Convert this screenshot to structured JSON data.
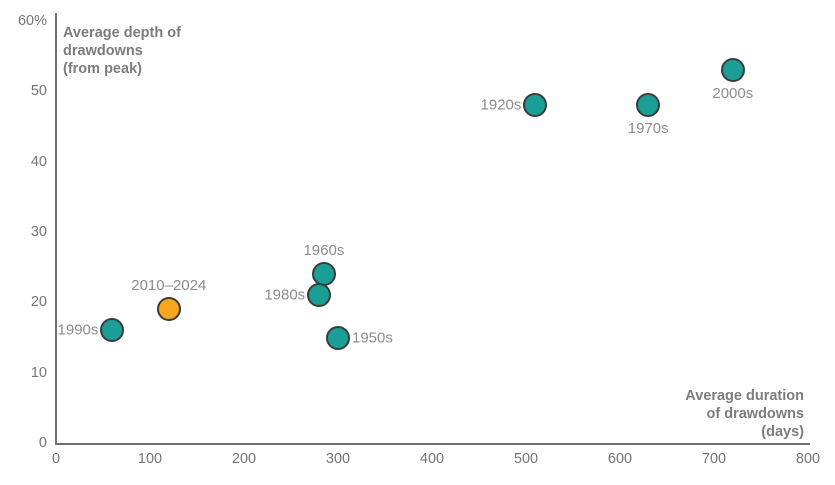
{
  "chart_data": {
    "type": "scatter",
    "title": "",
    "xlabel": "Average duration of drawdowns (days)",
    "ylabel": "Average depth of drawdowns (from peak)",
    "xlabel_lines": [
      "Average duration",
      "of drawdowns",
      "(days)"
    ],
    "ylabel_lines": [
      "Average depth of",
      "drawdowns",
      "(from peak)"
    ],
    "xlim": [
      0,
      800
    ],
    "ylim": [
      0,
      60
    ],
    "grid": false,
    "legend": false,
    "x_ticks": [
      {
        "value": 0,
        "label": "0"
      },
      {
        "value": 100,
        "label": "100"
      },
      {
        "value": 200,
        "label": "200"
      },
      {
        "value": 300,
        "label": "300"
      },
      {
        "value": 400,
        "label": "400"
      },
      {
        "value": 500,
        "label": "500"
      },
      {
        "value": 600,
        "label": "600"
      },
      {
        "value": 700,
        "label": "700"
      },
      {
        "value": 800,
        "label": "800"
      }
    ],
    "y_ticks": [
      {
        "value": 60,
        "label": "60%"
      },
      {
        "value": 50,
        "label": "50"
      },
      {
        "value": 40,
        "label": "40"
      },
      {
        "value": 30,
        "label": "30"
      },
      {
        "value": 20,
        "label": "20"
      },
      {
        "value": 10,
        "label": "10"
      },
      {
        "value": 0,
        "label": "0"
      }
    ],
    "points": [
      {
        "label": "1920s",
        "x": 510,
        "y": 48,
        "color": "#1b9e96",
        "label_position": "left"
      },
      {
        "label": "1950s",
        "x": 300,
        "y": 15,
        "color": "#1b9e96",
        "label_position": "right"
      },
      {
        "label": "1960s",
        "x": 285,
        "y": 24,
        "color": "#1b9e96",
        "label_position": "top"
      },
      {
        "label": "1970s",
        "x": 630,
        "y": 48,
        "color": "#1b9e96",
        "label_position": "bottom"
      },
      {
        "label": "1980s",
        "x": 280,
        "y": 21,
        "color": "#1b9e96",
        "label_position": "left"
      },
      {
        "label": "1990s",
        "x": 60,
        "y": 16,
        "color": "#1b9e96",
        "label_position": "left"
      },
      {
        "label": "2000s",
        "x": 720,
        "y": 53,
        "color": "#1b9e96",
        "label_position": "bottom"
      },
      {
        "label": "2010–2024",
        "x": 120,
        "y": 19,
        "color": "#f6a71d",
        "label_position": "top"
      }
    ],
    "colors": {
      "teal": "#1b9e96",
      "orange": "#f6a71d",
      "point_stroke": "#3b3b3b",
      "axis_line": "#6f6f6f",
      "tick_text": "#757575",
      "axis_title_text": "#7c7c7c",
      "point_label_text": "#8d8d8d",
      "background": "#ffffff"
    }
  }
}
